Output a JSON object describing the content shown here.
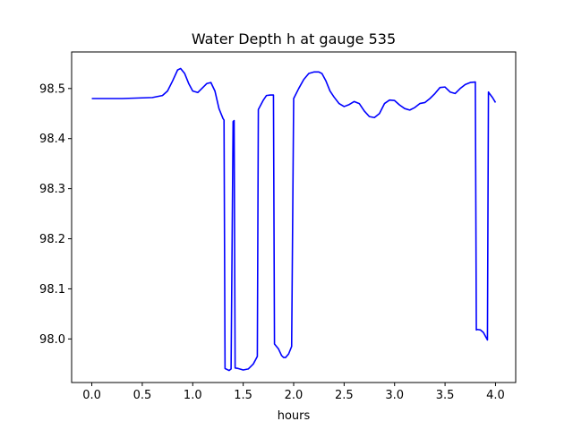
{
  "chart_data": {
    "type": "line",
    "title": "Water Depth h at gauge 535",
    "xlabel": "hours",
    "ylabel": "",
    "xlim": [
      -0.2,
      4.2
    ],
    "ylim": [
      97.913,
      98.573
    ],
    "xticks": [
      0.0,
      0.5,
      1.0,
      1.5,
      2.0,
      2.5,
      3.0,
      3.5,
      4.0
    ],
    "xtick_labels": [
      "0.0",
      "0.5",
      "1.0",
      "1.5",
      "2.0",
      "2.5",
      "3.0",
      "3.5",
      "4.0"
    ],
    "yticks": [
      98.0,
      98.1,
      98.2,
      98.3,
      98.4,
      98.5
    ],
    "ytick_labels": [
      "98.0",
      "98.1",
      "98.2",
      "98.3",
      "98.4",
      "98.5"
    ],
    "grid": false,
    "series": [
      {
        "color": "#0000ff",
        "x": [
          0.0,
          0.3,
          0.6,
          0.7,
          0.75,
          0.8,
          0.85,
          0.88,
          0.92,
          0.96,
          1.0,
          1.05,
          1.1,
          1.14,
          1.18,
          1.22,
          1.26,
          1.3,
          1.31,
          1.32,
          1.36,
          1.38,
          1.4,
          1.41,
          1.42,
          1.45,
          1.5,
          1.55,
          1.6,
          1.64,
          1.65,
          1.7,
          1.73,
          1.77,
          1.8,
          1.81,
          1.85,
          1.88,
          1.9,
          1.92,
          1.95,
          1.98,
          2.0,
          2.05,
          2.1,
          2.15,
          2.2,
          2.25,
          2.28,
          2.32,
          2.36,
          2.4,
          2.45,
          2.5,
          2.55,
          2.6,
          2.65,
          2.7,
          2.75,
          2.8,
          2.85,
          2.9,
          2.95,
          3.0,
          3.05,
          3.1,
          3.15,
          3.2,
          3.25,
          3.3,
          3.35,
          3.4,
          3.45,
          3.5,
          3.55,
          3.6,
          3.65,
          3.7,
          3.75,
          3.8,
          3.81,
          3.82,
          3.85,
          3.88,
          3.92,
          3.93,
          3.94,
          3.97,
          4.0
        ],
        "y": [
          98.48,
          98.48,
          98.482,
          98.486,
          98.495,
          98.515,
          98.537,
          98.54,
          98.53,
          98.51,
          98.495,
          98.492,
          98.502,
          98.51,
          98.512,
          98.495,
          98.46,
          98.44,
          98.437,
          97.941,
          97.937,
          97.94,
          98.434,
          98.436,
          97.942,
          97.941,
          97.938,
          97.94,
          97.95,
          97.965,
          98.458,
          98.477,
          98.486,
          98.487,
          98.487,
          97.99,
          97.98,
          97.967,
          97.963,
          97.963,
          97.97,
          97.985,
          98.48,
          98.5,
          98.518,
          98.53,
          98.533,
          98.533,
          98.53,
          98.515,
          98.495,
          98.483,
          98.47,
          98.464,
          98.468,
          98.474,
          98.47,
          98.455,
          98.444,
          98.442,
          98.45,
          98.47,
          98.477,
          98.476,
          98.467,
          98.46,
          98.457,
          98.462,
          98.47,
          98.472,
          98.48,
          98.49,
          98.502,
          98.503,
          98.493,
          98.49,
          98.5,
          98.508,
          98.512,
          98.513,
          98.018,
          98.019,
          98.018,
          98.013,
          97.998,
          98.493,
          98.49,
          98.482,
          98.472
        ]
      }
    ]
  }
}
